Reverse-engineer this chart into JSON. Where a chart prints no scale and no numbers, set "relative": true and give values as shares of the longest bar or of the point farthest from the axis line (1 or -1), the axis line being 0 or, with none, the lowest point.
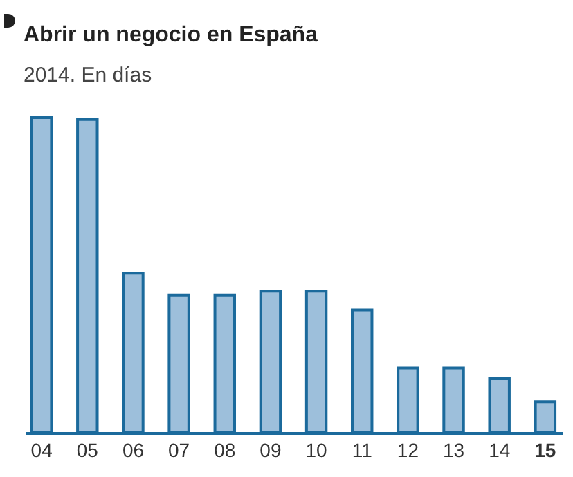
{
  "chart_data": {
    "type": "bar",
    "title": "Abrir un negocio en España",
    "subtitle": "2014. En días",
    "categories": [
      "04",
      "05",
      "06",
      "07",
      "08",
      "09",
      "10",
      "11",
      "12",
      "13",
      "14",
      "15"
    ],
    "values": [
      1,
      0.994,
      0.506,
      0.437,
      0.437,
      0.449,
      0.449,
      0.389,
      0.205,
      0.205,
      0.171,
      0.098
    ],
    "color": "#9dbfdb",
    "relative": true,
    "grid": false
  }
}
